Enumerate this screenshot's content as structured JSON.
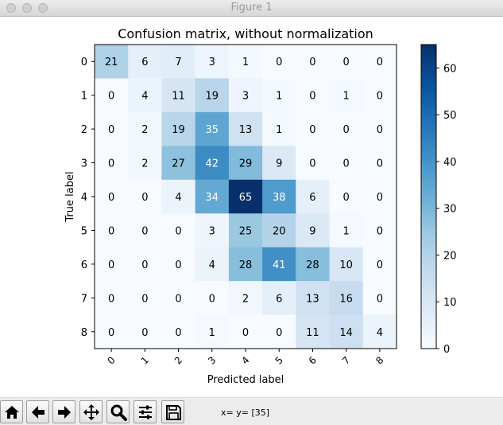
{
  "window": {
    "title": "Figure 1"
  },
  "chart_data": {
    "type": "heatmap",
    "title": "Confusion matrix, without normalization",
    "xlabel": "Predicted label",
    "ylabel": "True label",
    "x_tick_labels": [
      "0",
      "1",
      "2",
      "3",
      "4",
      "5",
      "6",
      "7",
      "8"
    ],
    "y_tick_labels": [
      "0",
      "1",
      "2",
      "3",
      "4",
      "5",
      "6",
      "7",
      "8"
    ],
    "matrix": [
      [
        21,
        6,
        7,
        3,
        1,
        0,
        0,
        0,
        0
      ],
      [
        0,
        4,
        11,
        19,
        3,
        1,
        0,
        1,
        0
      ],
      [
        0,
        2,
        19,
        35,
        13,
        1,
        0,
        0,
        0
      ],
      [
        0,
        2,
        27,
        42,
        29,
        9,
        0,
        0,
        0
      ],
      [
        0,
        0,
        4,
        34,
        65,
        38,
        6,
        0,
        0
      ],
      [
        0,
        0,
        0,
        3,
        25,
        20,
        9,
        1,
        0
      ],
      [
        0,
        0,
        0,
        4,
        28,
        41,
        28,
        10,
        0
      ],
      [
        0,
        0,
        0,
        0,
        2,
        6,
        13,
        16,
        0
      ],
      [
        0,
        0,
        0,
        1,
        0,
        0,
        11,
        14,
        4
      ]
    ],
    "colormap": "Blues",
    "value_range": [
      0,
      65
    ],
    "colorbar_ticks": [
      0,
      10,
      20,
      30,
      40,
      50,
      60
    ],
    "x_tick_rotation_deg": 45
  },
  "toolbar": {
    "buttons": [
      {
        "icon": "home-icon"
      },
      {
        "icon": "back-arrow-icon"
      },
      {
        "icon": "forward-arrow-icon"
      },
      {
        "icon": "pan-icon"
      },
      {
        "icon": "zoom-icon"
      },
      {
        "icon": "subplots-config-icon"
      },
      {
        "icon": "save-icon"
      }
    ],
    "coordinates_text": "x= y= [35]"
  }
}
